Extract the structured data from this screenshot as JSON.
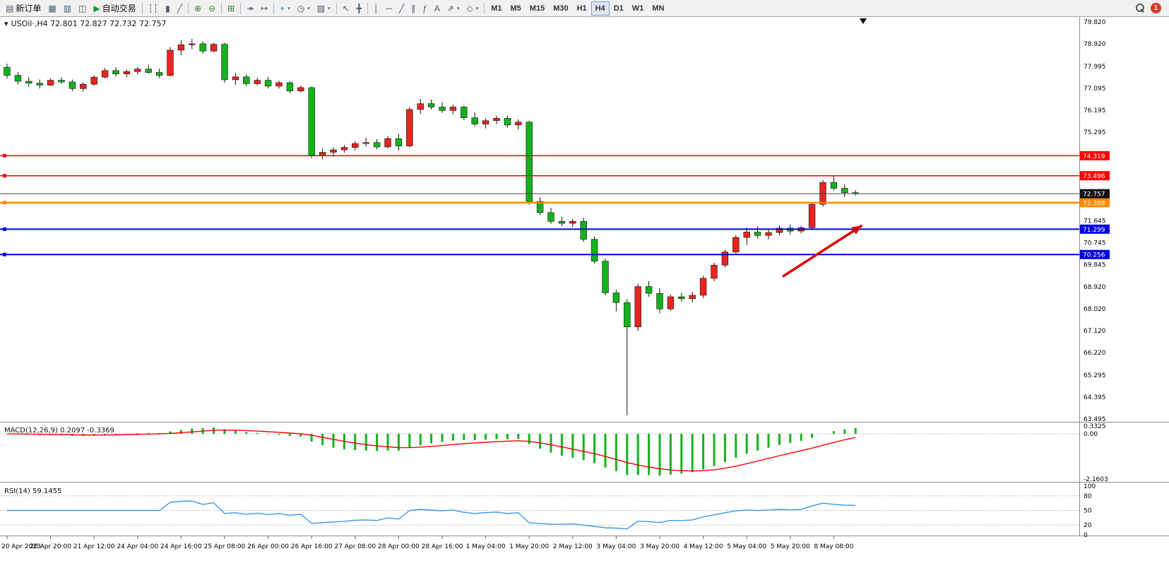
{
  "window": {
    "background": "#ffffff"
  },
  "icons": {
    "caret": "▾"
  },
  "toolbar": {
    "notification_count": "1",
    "timeframes": [
      "M1",
      "M5",
      "M15",
      "M30",
      "H1",
      "H4",
      "D1",
      "W1",
      "MN"
    ],
    "active_timeframe": "H4",
    "groups": [
      [
        {
          "name": "new-order-button",
          "glyph": "▤",
          "label": "新订单"
        },
        {
          "name": "charts-button",
          "glyph": "▦"
        },
        {
          "name": "market-watch-button",
          "glyph": "▥"
        },
        {
          "name": "navigator-button",
          "glyph": "◫"
        },
        {
          "name": "autotrading-button",
          "glyph": "▶",
          "label": "自动交易",
          "accent": "#1a9c2e"
        }
      ],
      [
        {
          "name": "bar-chart-button",
          "glyph": "┆┆"
        },
        {
          "name": "candlestick-chart-button",
          "glyph": "▮"
        },
        {
          "name": "line-chart-button",
          "glyph": "╱"
        }
      ],
      [
        {
          "name": "zoom-in-button",
          "glyph": "⊕",
          "accent": "#2d7d2d"
        },
        {
          "name": "zoom-out-button",
          "glyph": "⊖",
          "accent": "#2d7d2d"
        }
      ],
      [
        {
          "name": "tile-windows-button",
          "glyph": "⊞",
          "accent": "#2d7d2d"
        }
      ],
      [
        {
          "name": "auto-scroll-button",
          "glyph": "↠"
        },
        {
          "name": "chart-shift-button",
          "glyph": "↦"
        }
      ],
      [
        {
          "name": "indicators-button",
          "glyph": "+",
          "accent": "#1a7dc4",
          "caret": true
        },
        {
          "name": "periods-button",
          "glyph": "◷",
          "caret": true
        },
        {
          "name": "templates-button",
          "glyph": "▨",
          "caret": true
        }
      ],
      [
        {
          "name": "cursor-button",
          "glyph": "↖"
        },
        {
          "name": "crosshair-button",
          "glyph": "╋"
        }
      ],
      [
        {
          "name": "vertical-line-button",
          "glyph": "│"
        },
        {
          "name": "horizontal-line-button",
          "glyph": "─"
        },
        {
          "name": "trendline-button",
          "glyph": "╱"
        },
        {
          "name": "equidistant-channel-button",
          "glyph": "∥"
        },
        {
          "name": "fibonacci-button",
          "glyph": "ƒ"
        },
        {
          "name": "text-button",
          "glyph": "A"
        },
        {
          "name": "arrows-button",
          "glyph": "⇗",
          "caret": true
        },
        {
          "name": "shapes-button",
          "glyph": "◇",
          "caret": true
        }
      ]
    ]
  },
  "chart": {
    "title": "USOil·,H4 72.801 72.827 72.732 72.757",
    "macd_label": "MACD(12,26,9) 0.2097 -0.3369",
    "rsi_label": "RSI(14) 59.1455",
    "price_axis": [
      "79.820",
      "78.920",
      "77.995",
      "77.095",
      "76.195",
      "75.295",
      "74.395",
      "73.495",
      "72.570",
      "71.645",
      "70.745",
      "69.845",
      "68.920",
      "68.020",
      "67.120",
      "66.220",
      "65.295",
      "64.395",
      "63.495"
    ],
    "macd_axis": [
      "0.3325",
      "0.00",
      "-2.1603"
    ],
    "rsi_axis": [
      "100",
      "80",
      "50",
      "20",
      "0"
    ],
    "rsi_levels": [
      80,
      50,
      20
    ],
    "time_axis": [
      "20 Apr 2023",
      "20 Apr 20:00",
      "21 Apr 12:00",
      "24 Apr 04:00",
      "24 Apr 16:00",
      "25 Apr 08:00",
      "26 Apr 00:00",
      "26 Apr 16:00",
      "27 Apr 08:00",
      "28 Apr 00:00",
      "28 Apr 16:00",
      "1 May 04:00",
      "1 May 20:00",
      "2 May 12:00",
      "3 May 04:00",
      "3 May 20:00",
      "4 May 12:00",
      "5 May 04:00",
      "5 May 20:00",
      "8 May 08:00"
    ]
  },
  "chart_data": {
    "type": "candlestick",
    "symbol": "USOil",
    "timeframe": "H4",
    "ohlc": {
      "open": "72.801",
      "high": "72.827",
      "low": "72.732",
      "close": "72.757"
    },
    "current_price": 72.757,
    "colors": {
      "bull": "#e8241f",
      "bear": "#12b31c",
      "wick": "#111111",
      "macd_hist": "#12b31c",
      "macd_signal": "#ff0000",
      "rsi": "#3c96e8"
    },
    "hlines": [
      {
        "price": 74.319,
        "color": "#ff0000",
        "width": 1.5,
        "label": "74.319"
      },
      {
        "price": 73.496,
        "color": "#ff0000",
        "width": 1.5,
        "label": "73.496"
      },
      {
        "price": 72.388,
        "color": "#ff8a00",
        "width": 2.5,
        "label": "72.388"
      },
      {
        "price": 71.299,
        "color": "#0000e0",
        "width": 2,
        "label": "71.299"
      },
      {
        "price": 70.256,
        "color": "#0000e0",
        "width": 2,
        "label": "70.256"
      }
    ],
    "candles": [
      [
        77.95,
        78.1,
        77.5,
        77.62
      ],
      [
        77.62,
        77.75,
        77.25,
        77.38
      ],
      [
        77.38,
        77.55,
        77.15,
        77.3
      ],
      [
        77.3,
        77.45,
        77.08,
        77.22
      ],
      [
        77.22,
        77.5,
        77.18,
        77.42
      ],
      [
        77.42,
        77.55,
        77.28,
        77.35
      ],
      [
        77.35,
        77.45,
        76.98,
        77.08
      ],
      [
        77.08,
        77.32,
        76.95,
        77.26
      ],
      [
        77.26,
        77.62,
        77.2,
        77.55
      ],
      [
        77.55,
        77.92,
        77.5,
        77.82
      ],
      [
        77.82,
        77.96,
        77.58,
        77.68
      ],
      [
        77.68,
        77.86,
        77.55,
        77.78
      ],
      [
        77.78,
        77.96,
        77.66,
        77.88
      ],
      [
        77.88,
        78.06,
        77.68,
        77.74
      ],
      [
        77.74,
        77.9,
        77.52,
        77.62
      ],
      [
        77.62,
        78.78,
        77.58,
        78.66
      ],
      [
        78.66,
        79.06,
        78.46,
        78.88
      ],
      [
        78.88,
        79.12,
        78.7,
        78.92
      ],
      [
        78.92,
        79.02,
        78.52,
        78.62
      ],
      [
        78.62,
        78.96,
        78.58,
        78.9
      ],
      [
        78.9,
        78.96,
        77.32,
        77.44
      ],
      [
        77.44,
        77.72,
        77.24,
        77.56
      ],
      [
        77.56,
        77.66,
        77.18,
        77.28
      ],
      [
        77.28,
        77.52,
        77.2,
        77.42
      ],
      [
        77.42,
        77.56,
        77.08,
        77.18
      ],
      [
        77.18,
        77.4,
        77.08,
        77.32
      ],
      [
        77.32,
        77.38,
        76.88,
        76.98
      ],
      [
        76.98,
        77.2,
        76.92,
        77.12
      ],
      [
        77.12,
        77.16,
        74.22,
        74.34
      ],
      [
        74.34,
        74.62,
        74.18,
        74.46
      ],
      [
        74.46,
        74.66,
        74.28,
        74.56
      ],
      [
        74.56,
        74.76,
        74.44,
        74.66
      ],
      [
        74.66,
        74.92,
        74.54,
        74.82
      ],
      [
        74.82,
        75.06,
        74.7,
        74.86
      ],
      [
        74.86,
        75.0,
        74.58,
        74.68
      ],
      [
        74.68,
        75.12,
        74.62,
        75.02
      ],
      [
        75.02,
        75.22,
        74.52,
        74.72
      ],
      [
        74.72,
        76.32,
        74.66,
        76.22
      ],
      [
        76.22,
        76.66,
        76.04,
        76.46
      ],
      [
        76.46,
        76.62,
        76.22,
        76.32
      ],
      [
        76.32,
        76.52,
        76.08,
        76.18
      ],
      [
        76.18,
        76.42,
        76.02,
        76.32
      ],
      [
        76.32,
        76.38,
        75.78,
        75.88
      ],
      [
        75.88,
        76.1,
        75.52,
        75.62
      ],
      [
        75.62,
        75.86,
        75.44,
        75.76
      ],
      [
        75.76,
        75.96,
        75.62,
        75.86
      ],
      [
        75.86,
        75.96,
        75.48,
        75.58
      ],
      [
        75.58,
        75.82,
        75.4,
        75.7
      ],
      [
        75.7,
        75.76,
        72.32,
        72.44
      ],
      [
        72.44,
        72.62,
        71.88,
        71.98
      ],
      [
        71.98,
        72.18,
        71.52,
        71.62
      ],
      [
        71.62,
        71.8,
        71.42,
        71.54
      ],
      [
        71.54,
        71.72,
        71.38,
        71.62
      ],
      [
        71.62,
        71.76,
        70.78,
        70.88
      ],
      [
        70.88,
        71.0,
        69.88,
        69.98
      ],
      [
        69.98,
        70.1,
        68.58,
        68.68
      ],
      [
        68.68,
        68.8,
        67.92,
        68.28
      ],
      [
        68.28,
        68.42,
        63.64,
        67.28
      ],
      [
        67.28,
        69.06,
        67.12,
        68.94
      ],
      [
        68.94,
        69.16,
        68.52,
        68.66
      ],
      [
        68.66,
        68.86,
        67.84,
        68.02
      ],
      [
        68.02,
        68.62,
        67.94,
        68.52
      ],
      [
        68.52,
        68.68,
        68.32,
        68.44
      ],
      [
        68.44,
        68.72,
        68.28,
        68.58
      ],
      [
        68.58,
        69.38,
        68.46,
        69.28
      ],
      [
        69.28,
        69.92,
        69.16,
        69.82
      ],
      [
        69.82,
        70.46,
        69.72,
        70.36
      ],
      [
        70.36,
        71.06,
        70.26,
        70.96
      ],
      [
        70.96,
        71.36,
        70.64,
        71.18
      ],
      [
        71.18,
        71.42,
        70.92,
        71.04
      ],
      [
        71.04,
        71.3,
        70.88,
        71.16
      ],
      [
        71.16,
        71.46,
        71.04,
        71.34
      ],
      [
        71.34,
        71.5,
        71.08,
        71.22
      ],
      [
        71.22,
        71.44,
        71.12,
        71.36
      ],
      [
        71.36,
        72.42,
        71.26,
        72.32
      ],
      [
        72.32,
        73.32,
        72.22,
        73.22
      ],
      [
        73.22,
        73.5,
        72.88,
        72.98
      ],
      [
        72.98,
        73.14,
        72.62,
        72.8
      ],
      [
        72.8,
        72.9,
        72.68,
        72.76
      ]
    ]
  },
  "annotations": {
    "arrow": {
      "from_index": 71.3,
      "from_price": 69.35,
      "to_index": 78.6,
      "to_price": 71.45,
      "color": "#dd0000"
    },
    "time_marker_index": 78.7
  }
}
